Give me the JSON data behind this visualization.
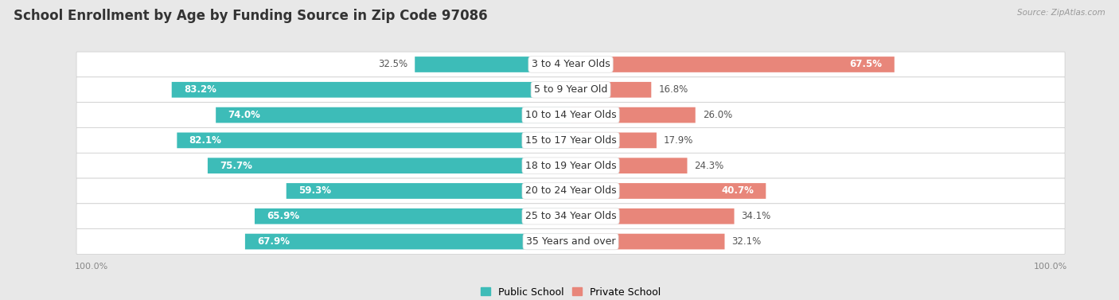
{
  "title": "School Enrollment by Age by Funding Source in Zip Code 97086",
  "source": "Source: ZipAtlas.com",
  "categories": [
    "3 to 4 Year Olds",
    "5 to 9 Year Old",
    "10 to 14 Year Olds",
    "15 to 17 Year Olds",
    "18 to 19 Year Olds",
    "20 to 24 Year Olds",
    "25 to 34 Year Olds",
    "35 Years and over"
  ],
  "public_values": [
    32.5,
    83.2,
    74.0,
    82.1,
    75.7,
    59.3,
    65.9,
    67.9
  ],
  "private_values": [
    67.5,
    16.8,
    26.0,
    17.9,
    24.3,
    40.7,
    34.1,
    32.1
  ],
  "public_color": "#3dbcb8",
  "private_color": "#e8867a",
  "bg_color": "#e8e8e8",
  "row_bg": "#f5f5f5",
  "title_fontsize": 12,
  "label_fontsize": 9,
  "value_fontsize": 8.5,
  "legend_fontsize": 9,
  "axis_label_fontsize": 8
}
